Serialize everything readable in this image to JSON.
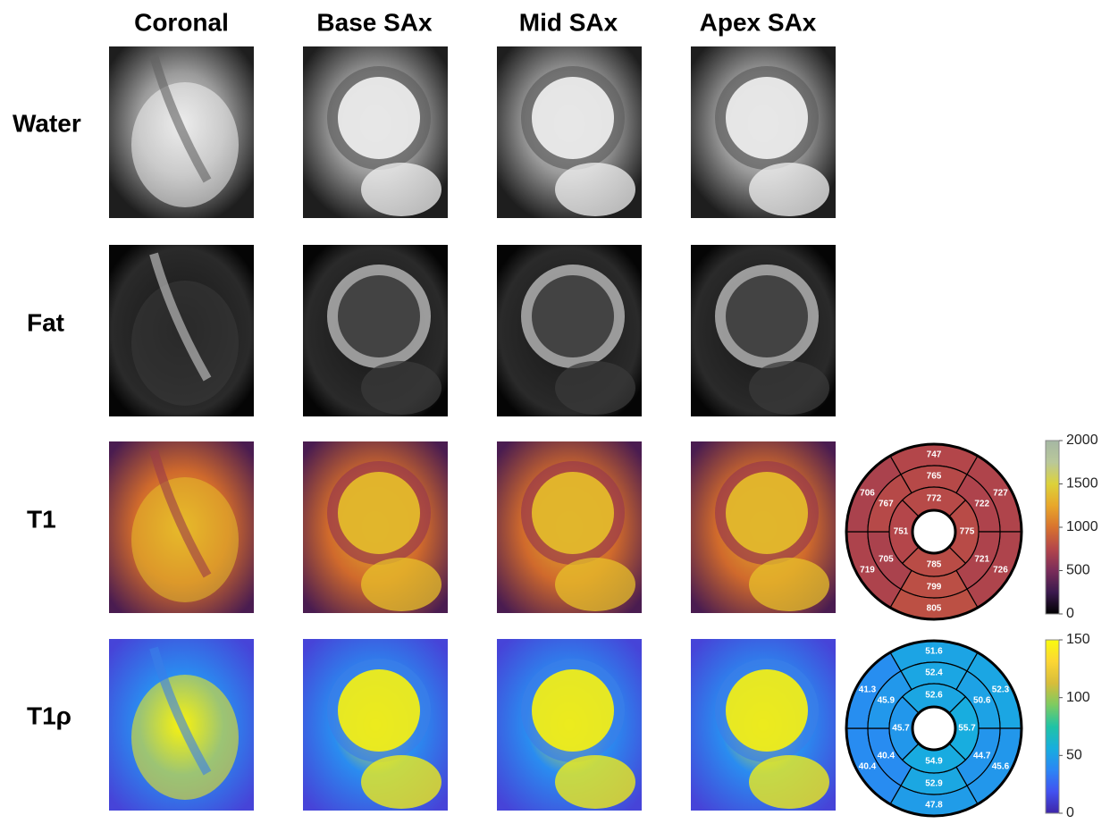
{
  "columns": [
    "Coronal",
    "Base SAx",
    "Mid SAx",
    "Apex SAx"
  ],
  "rows": [
    "Water",
    "Fat",
    "T1",
    "T1ρ"
  ],
  "t1_bullseye": {
    "outer": [
      747,
      727,
      726,
      805,
      719,
      706
    ],
    "middle": [
      765,
      722,
      721,
      799,
      705,
      767
    ],
    "inner": [
      772,
      775,
      785,
      751
    ],
    "colorbar_ticks": [
      0,
      500,
      1000,
      1500,
      2000
    ],
    "colormap": [
      "#000000",
      "#3b1a4e",
      "#7a2d5a",
      "#b4464a",
      "#d8732f",
      "#e8a72a",
      "#dcd23a",
      "#b9c89a",
      "#a5b7a4"
    ]
  },
  "t1rho_bullseye": {
    "outer": [
      51.6,
      52.3,
      45.6,
      47.8,
      40.4,
      41.3
    ],
    "middle": [
      52.4,
      50.6,
      44.7,
      52.9,
      40.4,
      45.9
    ],
    "inner": [
      52.6,
      55.7,
      54.9,
      45.7
    ],
    "colorbar_ticks": [
      0,
      50,
      100,
      150
    ],
    "colormap": [
      "#3e26a8",
      "#4252f0",
      "#2b86f5",
      "#17aede",
      "#20c3a5",
      "#7dcb61",
      "#d7bd3a",
      "#fcd634",
      "#f9fb0e"
    ]
  }
}
